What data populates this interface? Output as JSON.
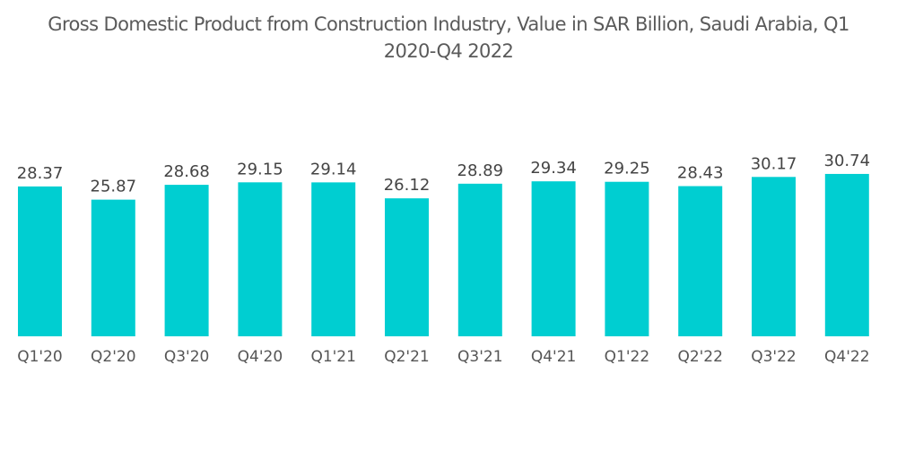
{
  "chart_data": {
    "type": "bar",
    "title": "Gross Domestic Product from Construction Industry, Value in SAR Billion, Saudi Arabia, Q1 2020-Q4 2022",
    "title_lines": [
      "Gross Domestic Product from Construction Industry, Value in SAR Billion, Saudi Arabia, Q1",
      "2020-Q4 2022"
    ],
    "categories": [
      "Q1'20",
      "Q2'20",
      "Q3'20",
      "Q4'20",
      "Q1'21",
      "Q2'21",
      "Q3'21",
      "Q4'21",
      "Q1'22",
      "Q2'22",
      "Q3'22",
      "Q4'22"
    ],
    "values": [
      28.37,
      25.87,
      28.68,
      29.15,
      29.14,
      26.12,
      28.89,
      29.34,
      29.25,
      28.43,
      30.17,
      30.74
    ],
    "value_labels": [
      "28.37",
      "25.87",
      "28.68",
      "29.15",
      "29.14",
      "26.12",
      "28.89",
      "29.34",
      "29.25",
      "28.43",
      "30.17",
      "30.74"
    ],
    "xlabel": "",
    "ylabel": "",
    "ylim": [
      0,
      31
    ],
    "grid": false,
    "legend": "none",
    "bar_color": "#00CED1"
  }
}
